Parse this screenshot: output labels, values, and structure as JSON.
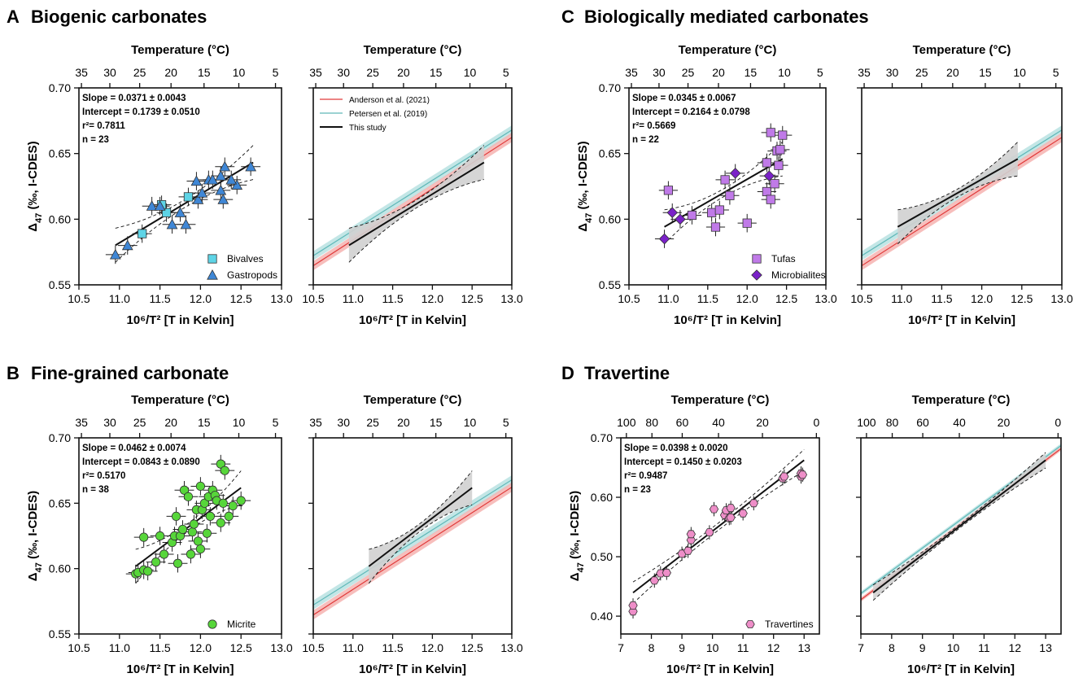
{
  "colors": {
    "bivalves": "#5ed4e6",
    "gastropods": "#3f87d6",
    "micrite": "#57d63a",
    "tufas": "#c07ae8",
    "microbialites": "#7a22c8",
    "travertines": "#ee8ec8",
    "anderson": "#e03a3a",
    "anderson_band": "#f6b3b0",
    "petersen": "#5fb8b8",
    "petersen_band": "#b9e2e2",
    "this_study": "#111111",
    "ci_band": "#d0d0d0"
  },
  "panels": [
    {
      "letter": "A",
      "title": "Biogenic carbonates"
    },
    {
      "letter": "B",
      "title": "Fine-grained carbonate"
    },
    {
      "letter": "C",
      "title": "Biologically mediated carbonates"
    },
    {
      "letter": "D",
      "title": "Travertine"
    }
  ],
  "chart_data": [
    {
      "id": "A-left",
      "type": "scatter",
      "top_axis": {
        "label": "Temperature (°C)",
        "ticks": [
          "35",
          "30",
          "25",
          "20",
          "15",
          "10",
          "5"
        ]
      },
      "xlabel": "10⁶/T² [T in Kelvin]",
      "ylabel": "Δ47 (‰, I-CDES)",
      "xlim": [
        10.5,
        13.0
      ],
      "ylim": [
        0.55,
        0.7
      ],
      "xticks": [
        "10.5",
        "11.0",
        "11.5",
        "12.0",
        "12.5",
        "13.0"
      ],
      "yticks": [
        "0.55",
        "0.60",
        "0.65",
        "0.70"
      ],
      "stats": [
        "Slope = 0.0371 ± 0.0043",
        "Intercept = 0.1739 ± 0.0510",
        "r²= 0.7811",
        "n = 23"
      ],
      "legend": [
        "Bivalves",
        "Gastropods"
      ],
      "fit": {
        "slope": 0.0371,
        "intercept": 0.1739,
        "x_range": [
          10.95,
          12.65
        ]
      },
      "series": [
        {
          "name": "Bivalves",
          "marker": "square",
          "points": [
            [
              11.28,
              0.589
            ],
            [
              11.58,
              0.605
            ],
            [
              11.85,
              0.617
            ],
            [
              11.52,
              0.611
            ]
          ]
        },
        {
          "name": "Gastropods",
          "marker": "triangle",
          "points": [
            [
              10.95,
              0.573
            ],
            [
              11.1,
              0.58
            ],
            [
              11.4,
              0.61
            ],
            [
              11.5,
              0.61
            ],
            [
              11.65,
              0.596
            ],
            [
              11.75,
              0.605
            ],
            [
              11.82,
              0.596
            ],
            [
              11.95,
              0.629
            ],
            [
              11.97,
              0.615
            ],
            [
              12.02,
              0.62
            ],
            [
              12.1,
              0.63
            ],
            [
              12.15,
              0.63
            ],
            [
              12.25,
              0.633
            ],
            [
              12.25,
              0.622
            ],
            [
              12.28,
              0.615
            ],
            [
              12.3,
              0.64
            ],
            [
              12.45,
              0.626
            ],
            [
              12.62,
              0.64
            ],
            [
              12.38,
              0.63
            ]
          ]
        }
      ]
    },
    {
      "id": "A-right",
      "type": "line",
      "top_axis": {
        "label": "Temperature (°C)",
        "ticks": [
          "35",
          "30",
          "25",
          "20",
          "15",
          "10",
          "5"
        ]
      },
      "xlabel": "10⁶/T² [T in Kelvin]",
      "xlim": [
        10.5,
        13.0
      ],
      "ylim": [
        0.55,
        0.7
      ],
      "xticks": [
        "10.5",
        "11.0",
        "11.5",
        "12.0",
        "12.5",
        "13.0"
      ],
      "legend": [
        "Anderson et al. (2021)",
        "Petersen et al. (2019)",
        "This study"
      ],
      "fit": {
        "slope": 0.0371,
        "intercept": 0.1739,
        "x_range": [
          10.95,
          12.65
        ]
      }
    },
    {
      "id": "B-left",
      "type": "scatter",
      "top_axis": {
        "label": "Temperature (°C)",
        "ticks": [
          "35",
          "30",
          "25",
          "20",
          "15",
          "10",
          "5"
        ]
      },
      "xlabel": "10⁶/T² [T in Kelvin]",
      "ylabel": "Δ47 (‰, I-CDES)",
      "xlim": [
        10.5,
        13.0
      ],
      "ylim": [
        0.55,
        0.7
      ],
      "xticks": [
        "10.5",
        "11.0",
        "11.5",
        "12.0",
        "12.5",
        "13.0"
      ],
      "yticks": [
        "0.55",
        "0.60",
        "0.65",
        "0.70"
      ],
      "stats": [
        "Slope = 0.0462 ± 0.0074",
        "Intercept = 0.0843 ± 0.0890",
        "r²= 0.5170",
        "n = 38"
      ],
      "legend": [
        "Micrite"
      ],
      "fit": {
        "slope": 0.0462,
        "intercept": 0.0843,
        "x_range": [
          11.2,
          12.5
        ]
      },
      "series": [
        {
          "name": "Micrite",
          "marker": "circle",
          "points": [
            [
              11.2,
              0.596
            ],
            [
              11.23,
              0.597
            ],
            [
              11.3,
              0.599
            ],
            [
              11.3,
              0.624
            ],
            [
              11.35,
              0.598
            ],
            [
              11.45,
              0.605
            ],
            [
              11.5,
              0.625
            ],
            [
              11.55,
              0.611
            ],
            [
              11.65,
              0.62
            ],
            [
              11.68,
              0.625
            ],
            [
              11.7,
              0.64
            ],
            [
              11.72,
              0.604
            ],
            [
              11.75,
              0.625
            ],
            [
              11.78,
              0.63
            ],
            [
              11.8,
              0.66
            ],
            [
              11.85,
              0.655
            ],
            [
              11.88,
              0.611
            ],
            [
              11.9,
              0.628
            ],
            [
              11.92,
              0.634
            ],
            [
              11.95,
              0.645
            ],
            [
              11.97,
              0.621
            ],
            [
              12.0,
              0.663
            ],
            [
              12.0,
              0.615
            ],
            [
              12.02,
              0.645
            ],
            [
              12.05,
              0.65
            ],
            [
              12.08,
              0.627
            ],
            [
              12.1,
              0.655
            ],
            [
              12.12,
              0.64
            ],
            [
              12.15,
              0.66
            ],
            [
              12.18,
              0.656
            ],
            [
              12.2,
              0.652
            ],
            [
              12.25,
              0.635
            ],
            [
              12.25,
              0.68
            ],
            [
              12.28,
              0.65
            ],
            [
              12.3,
              0.675
            ],
            [
              12.35,
              0.64
            ],
            [
              12.4,
              0.648
            ],
            [
              12.5,
              0.652
            ]
          ]
        }
      ]
    },
    {
      "id": "B-right",
      "type": "line",
      "top_axis": {
        "label": "Temperature (°C)",
        "ticks": [
          "35",
          "30",
          "25",
          "20",
          "15",
          "10",
          "5"
        ]
      },
      "xlabel": "10⁶/T² [T in Kelvin]",
      "xlim": [
        10.5,
        13.0
      ],
      "ylim": [
        0.55,
        0.7
      ],
      "xticks": [
        "10.5",
        "11.0",
        "11.5",
        "12.0",
        "12.5",
        "13.0"
      ],
      "fit": {
        "slope": 0.0462,
        "intercept": 0.0843,
        "x_range": [
          11.2,
          12.5
        ]
      }
    },
    {
      "id": "C-left",
      "type": "scatter",
      "top_axis": {
        "label": "Temperature (°C)",
        "ticks": [
          "35",
          "30",
          "25",
          "20",
          "15",
          "10",
          "5"
        ]
      },
      "xlabel": "10⁶/T² [T in Kelvin]",
      "ylabel": "Δ47 (‰, I-CDES)",
      "xlim": [
        10.5,
        13.0
      ],
      "ylim": [
        0.55,
        0.7
      ],
      "xticks": [
        "10.5",
        "11.0",
        "11.5",
        "12.0",
        "12.5",
        "13.0"
      ],
      "yticks": [
        "0.55",
        "0.60",
        "0.65",
        "0.70"
      ],
      "stats": [
        "Slope = 0.0345 ± 0.0067",
        "Intercept = 0.2164 ± 0.0798",
        "r²= 0.5669",
        "n = 22"
      ],
      "legend": [
        "Tufas",
        "Microbialites"
      ],
      "fit": {
        "slope": 0.0345,
        "intercept": 0.2164,
        "x_range": [
          10.95,
          12.45
        ]
      },
      "series": [
        {
          "name": "Tufas",
          "marker": "square",
          "points": [
            [
              11.0,
              0.622
            ],
            [
              11.3,
              0.603
            ],
            [
              11.55,
              0.605
            ],
            [
              11.6,
              0.594
            ],
            [
              11.65,
              0.607
            ],
            [
              11.72,
              0.63
            ],
            [
              11.78,
              0.618
            ],
            [
              12.0,
              0.597
            ],
            [
              12.25,
              0.621
            ],
            [
              12.25,
              0.643
            ],
            [
              12.3,
              0.666
            ],
            [
              12.35,
              0.627
            ],
            [
              12.38,
              0.652
            ],
            [
              12.4,
              0.641
            ],
            [
              12.42,
              0.653
            ],
            [
              12.45,
              0.664
            ],
            [
              12.3,
              0.615
            ]
          ]
        },
        {
          "name": "Microbialites",
          "marker": "diamond",
          "points": [
            [
              10.95,
              0.585
            ],
            [
              11.05,
              0.605
            ],
            [
              11.15,
              0.6
            ],
            [
              11.85,
              0.635
            ],
            [
              12.28,
              0.633
            ]
          ]
        }
      ]
    },
    {
      "id": "C-right",
      "type": "line",
      "top_axis": {
        "label": "Temperature (°C)",
        "ticks": [
          "35",
          "30",
          "25",
          "20",
          "15",
          "10",
          "5"
        ]
      },
      "xlabel": "10⁶/T² [T in Kelvin]",
      "xlim": [
        10.5,
        13.0
      ],
      "ylim": [
        0.55,
        0.7
      ],
      "xticks": [
        "10.5",
        "11.0",
        "11.5",
        "12.0",
        "12.5",
        "13.0"
      ],
      "fit": {
        "slope": 0.0345,
        "intercept": 0.2164,
        "x_range": [
          10.95,
          12.45
        ]
      }
    },
    {
      "id": "D-left",
      "type": "scatter",
      "top_axis": {
        "label": "Temperature (°C)",
        "ticks": [
          "100",
          "80",
          "60",
          "40",
          "20",
          "0"
        ]
      },
      "xlabel": "10⁶/T² [T in Kelvin]",
      "ylabel": "Δ47 (‰, I-CDES)",
      "xlim": [
        7.0,
        13.5
      ],
      "ylim": [
        0.37,
        0.7
      ],
      "xticks": [
        "7",
        "8",
        "9",
        "10",
        "11",
        "12",
        "13"
      ],
      "yticks": [
        "0.40",
        "0.50",
        "0.60",
        "0.70"
      ],
      "stats": [
        "Slope = 0.0398 ± 0.0020",
        "Intercept = 0.1450 ± 0.0203",
        "r²= 0.9487",
        "n = 23"
      ],
      "legend": [
        "Travertines"
      ],
      "fit": {
        "slope": 0.0398,
        "intercept": 0.145,
        "x_range": [
          7.4,
          13.0
        ]
      },
      "series": [
        {
          "name": "Travertines",
          "marker": "hexagon",
          "points": [
            [
              7.4,
              0.408
            ],
            [
              7.4,
              0.418
            ],
            [
              8.1,
              0.46
            ],
            [
              8.3,
              0.472
            ],
            [
              8.5,
              0.473
            ],
            [
              9.0,
              0.505
            ],
            [
              9.2,
              0.51
            ],
            [
              9.3,
              0.528
            ],
            [
              9.3,
              0.538
            ],
            [
              9.9,
              0.541
            ],
            [
              10.05,
              0.58
            ],
            [
              10.4,
              0.57
            ],
            [
              10.45,
              0.578
            ],
            [
              10.55,
              0.565
            ],
            [
              10.6,
              0.582
            ],
            [
              10.6,
              0.566
            ],
            [
              11.0,
              0.573
            ],
            [
              11.35,
              0.59
            ],
            [
              12.3,
              0.632
            ],
            [
              12.35,
              0.635
            ],
            [
              12.9,
              0.635
            ],
            [
              12.9,
              0.64
            ],
            [
              12.95,
              0.638
            ]
          ]
        }
      ]
    },
    {
      "id": "D-right",
      "type": "line",
      "top_axis": {
        "label": "Temperature (°C)",
        "ticks": [
          "100",
          "80",
          "60",
          "40",
          "20",
          "0"
        ]
      },
      "xlabel": "10⁶/T² [T in Kelvin]",
      "xlim": [
        7.0,
        13.5
      ],
      "ylim": [
        0.37,
        0.7
      ],
      "xticks": [
        "7",
        "8",
        "9",
        "10",
        "11",
        "12",
        "13"
      ],
      "fit": {
        "slope": 0.0398,
        "intercept": 0.145,
        "x_range": [
          7.4,
          13.0
        ]
      }
    }
  ]
}
